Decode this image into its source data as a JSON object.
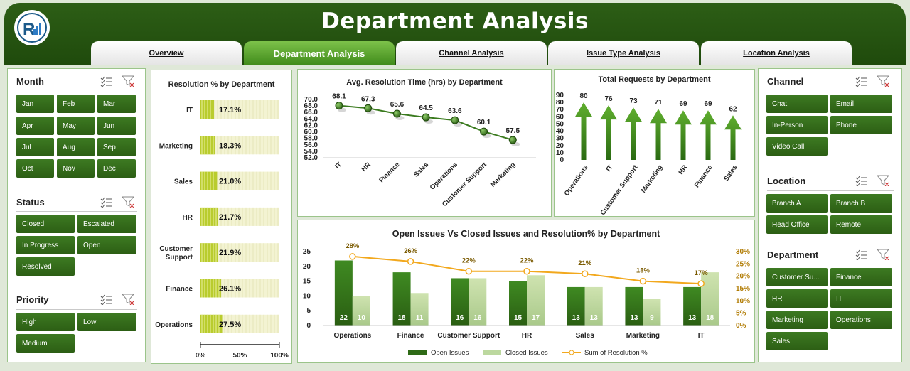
{
  "title": "Department Analysis",
  "tabs": [
    {
      "label": "Overview"
    },
    {
      "label": "Department Analysis"
    },
    {
      "label": "Channel Analysis"
    },
    {
      "label": "Issue Type Analysis"
    },
    {
      "label": "Location Analysis"
    }
  ],
  "slicers": {
    "month": {
      "title": "Month",
      "items": [
        "Jan",
        "Feb",
        "Mar",
        "Apr",
        "May",
        "Jun",
        "Jul",
        "Aug",
        "Sep",
        "Oct",
        "Nov",
        "Dec"
      ]
    },
    "status": {
      "title": "Status",
      "items": [
        "Closed",
        "Escalated",
        "In Progress",
        "Open",
        "Resolved"
      ]
    },
    "priority": {
      "title": "Priority",
      "items": [
        "High",
        "Low",
        "Medium"
      ]
    },
    "channel": {
      "title": "Channel",
      "items": [
        "Chat",
        "Email",
        "In-Person",
        "Phone",
        "Video Call"
      ]
    },
    "location": {
      "title": "Location",
      "items": [
        "Branch A",
        "Branch B",
        "Head Office",
        "Remote"
      ]
    },
    "department": {
      "title": "Department",
      "items": [
        "Customer Su...",
        "Finance",
        "HR",
        "IT",
        "Marketing",
        "Operations",
        "Sales"
      ]
    }
  },
  "chart_data": [
    {
      "type": "bar",
      "title": "Resolution % by Department",
      "categories": [
        "IT",
        "Marketing",
        "Sales",
        "HR",
        "Customer Support",
        "Finance",
        "Operations"
      ],
      "values": [
        17.1,
        18.3,
        21.0,
        21.7,
        21.9,
        26.1,
        27.5
      ],
      "labels": [
        "17.1%",
        "18.3%",
        "21.0%",
        "21.7%",
        "21.9%",
        "26.1%",
        "27.5%"
      ],
      "xticks": [
        "0%",
        "50%",
        "100%"
      ],
      "xlim": [
        0,
        100
      ]
    },
    {
      "type": "line",
      "title": "Avg. Resolution Time (hrs) by Department",
      "categories": [
        "IT",
        "HR",
        "Finance",
        "Sales",
        "Operations",
        "Customer Support",
        "Marketing"
      ],
      "values": [
        68.1,
        67.3,
        65.6,
        64.5,
        63.6,
        60.1,
        57.5
      ],
      "yticks": [
        "70.0",
        "68.0",
        "66.0",
        "64.0",
        "62.0",
        "60.0",
        "58.0",
        "56.0",
        "54.0",
        "52.0"
      ],
      "ylim": [
        52,
        70
      ]
    },
    {
      "type": "bar",
      "title": "Total Requests by Department",
      "categories": [
        "Operations",
        "IT",
        "Customer Support",
        "Marketing",
        "HR",
        "Finance",
        "Sales"
      ],
      "values": [
        80,
        76,
        73,
        71,
        69,
        69,
        62
      ],
      "yticks": [
        "90",
        "80",
        "70",
        "60",
        "50",
        "40",
        "30",
        "20",
        "10",
        "0"
      ],
      "ylim": [
        0,
        90
      ]
    },
    {
      "type": "bar",
      "title": "Open Issues Vs Closed Issues and Resolution%  by Department",
      "categories": [
        "Operations",
        "Finance",
        "Customer Support",
        "HR",
        "Sales",
        "Marketing",
        "IT"
      ],
      "series": [
        {
          "name": "Open Issues",
          "values": [
            22,
            18,
            16,
            15,
            13,
            13,
            13
          ]
        },
        {
          "name": "Closed Issues",
          "values": [
            10,
            11,
            16,
            17,
            13,
            9,
            18
          ]
        },
        {
          "name": "Sum of Resolution %",
          "values": [
            28,
            26,
            22,
            22,
            21,
            18,
            17
          ],
          "labels": [
            "28%",
            "26%",
            "22%",
            "22%",
            "21%",
            "18%",
            "17%"
          ]
        }
      ],
      "yticks": [
        "25",
        "20",
        "15",
        "10",
        "5",
        "0"
      ],
      "y2ticks": [
        "30%",
        "25%",
        "20%",
        "15%",
        "10%",
        "5%",
        "0%"
      ],
      "ylim": [
        0,
        25
      ],
      "y2lim": [
        0,
        30
      ]
    }
  ]
}
